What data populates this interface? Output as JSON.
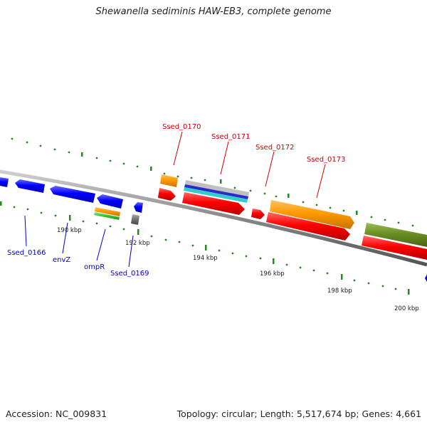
{
  "title": "Shewanella sediminis HAW-EB3, complete genome",
  "footer": {
    "accession": "Accession: NC_009831",
    "stats": "Topology: circular; Length: 5,517,674 bp; Genes: 4,661"
  },
  "scale_labels": [
    "190 kbp",
    "192 kbp",
    "194 kbp",
    "196 kbp",
    "198 kbp",
    "200 kbp"
  ],
  "gene_labels": {
    "forward": [
      "Ssed_0170",
      "Ssed_0171",
      "Ssed_0172",
      "Ssed_0173"
    ],
    "reverse": [
      "Ssed_0166",
      "envZ",
      "ompR",
      "Ssed_0169"
    ]
  },
  "colors": {
    "forward_label": "#cc0000",
    "reverse_label": "#0000cc",
    "cds_red": "#ff0000",
    "cds_blue": "#0000ff",
    "gene_orange": "#ff9900",
    "olive": "#6b8e23",
    "green": "#33cc33",
    "cyan": "#00cccc",
    "gray": "#777777",
    "tick_green": "#228b22"
  }
}
